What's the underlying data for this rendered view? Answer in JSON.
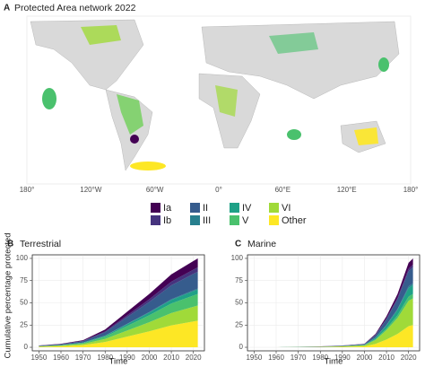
{
  "map": {
    "label": "A",
    "title": "Protected Area network 2022",
    "xtick_labels": [
      "180°",
      "120°W",
      "60°W",
      "0°",
      "60°E",
      "120°E",
      "180°"
    ]
  },
  "chart_data": [
    {
      "type": "area",
      "panel": "B",
      "title": "Terrestrial",
      "ylabel": "Cumulative percentage protected",
      "xlabel": "Time",
      "x": [
        1950,
        1960,
        1970,
        1980,
        1990,
        2000,
        2010,
        2020,
        2022
      ],
      "xlim": [
        1947,
        2025
      ],
      "ylim": [
        -4,
        104
      ],
      "xticks": [
        1950,
        1960,
        1970,
        1980,
        1990,
        2000,
        2010,
        2020
      ],
      "yticks": [
        0,
        25,
        50,
        75,
        100
      ],
      "grid": true,
      "series": [
        {
          "name": "Other",
          "color": "#fde725",
          "values": [
            0.6,
            1.2,
            2.4,
            6,
            12,
            18,
            24.6,
            29.1,
            30
          ]
        },
        {
          "name": "VI",
          "color": "#a0da39",
          "values": [
            0.3,
            0.7,
            1.4,
            3.4,
            6.8,
            10.2,
            13.9,
            16.5,
            17
          ]
        },
        {
          "name": "V",
          "color": "#4ac16d",
          "values": [
            0.3,
            0.5,
            1,
            2.6,
            5.2,
            7.8,
            10.7,
            12.6,
            13
          ]
        },
        {
          "name": "IV",
          "color": "#1fa187",
          "values": [
            0.1,
            0.2,
            0.4,
            1,
            2,
            3,
            4.1,
            4.9,
            5
          ]
        },
        {
          "name": "III",
          "color": "#277f8e",
          "values": [
            0,
            0,
            0.1,
            0.2,
            0.4,
            0.6,
            0.8,
            1,
            1
          ]
        },
        {
          "name": "II",
          "color": "#365c8d",
          "values": [
            0.4,
            0.8,
            1.5,
            3.8,
            7.6,
            11.4,
            15.6,
            18.4,
            19
          ]
        },
        {
          "name": "Ib",
          "color": "#46337e",
          "values": [
            0.1,
            0.2,
            0.4,
            1,
            2,
            3,
            4.1,
            4.8,
            5
          ]
        },
        {
          "name": "Ia",
          "color": "#440154",
          "values": [
            0.2,
            0.4,
            0.8,
            2,
            4,
            6,
            8.2,
            9.7,
            10
          ]
        }
      ]
    },
    {
      "type": "area",
      "panel": "C",
      "title": "Marine",
      "xlabel": "Time",
      "x": [
        1950,
        1960,
        1970,
        1980,
        1990,
        2000,
        2005,
        2010,
        2015,
        2020,
        2022
      ],
      "xlim": [
        1947,
        2025
      ],
      "ylim": [
        -4,
        104
      ],
      "xticks": [
        1950,
        1960,
        1970,
        1980,
        1990,
        2000,
        2010,
        2020
      ],
      "yticks": [
        0,
        25,
        50,
        75,
        100
      ],
      "grid": true,
      "series": [
        {
          "name": "Other",
          "color": "#fde725",
          "values": [
            0,
            0,
            0.1,
            0.3,
            0.5,
            1,
            3.8,
            8.8,
            15,
            23.8,
            25
          ]
        },
        {
          "name": "VI",
          "color": "#a0da39",
          "values": [
            0,
            0,
            0.2,
            0.3,
            0.6,
            1.2,
            4.5,
            10.5,
            18,
            28.5,
            30
          ]
        },
        {
          "name": "V",
          "color": "#4ac16d",
          "values": [
            0,
            0,
            0,
            0,
            0.1,
            0.2,
            0.8,
            1.8,
            3,
            4.8,
            5
          ]
        },
        {
          "name": "IV",
          "color": "#1fa187",
          "values": [
            0,
            0,
            0.1,
            0.1,
            0.2,
            0.4,
            1.5,
            3.5,
            6,
            9.5,
            10
          ]
        },
        {
          "name": "III",
          "color": "#277f8e",
          "values": [
            0,
            0,
            0,
            0,
            0,
            0.1,
            0.3,
            0.7,
            1.2,
            1.9,
            2
          ]
        },
        {
          "name": "II",
          "color": "#365c8d",
          "values": [
            0,
            0,
            0.1,
            0.2,
            0.4,
            0.7,
            2.7,
            6.3,
            10.8,
            17.1,
            18
          ]
        },
        {
          "name": "Ib",
          "color": "#46337e",
          "values": [
            0,
            0,
            0,
            0,
            0.1,
            0.1,
            0.4,
            1,
            1.8,
            2.9,
            3
          ]
        },
        {
          "name": "Ia",
          "color": "#440154",
          "values": [
            0,
            0,
            0,
            0.1,
            0.1,
            0.3,
            1,
            2.4,
            4.2,
            6.6,
            7
          ]
        }
      ]
    }
  ]
}
